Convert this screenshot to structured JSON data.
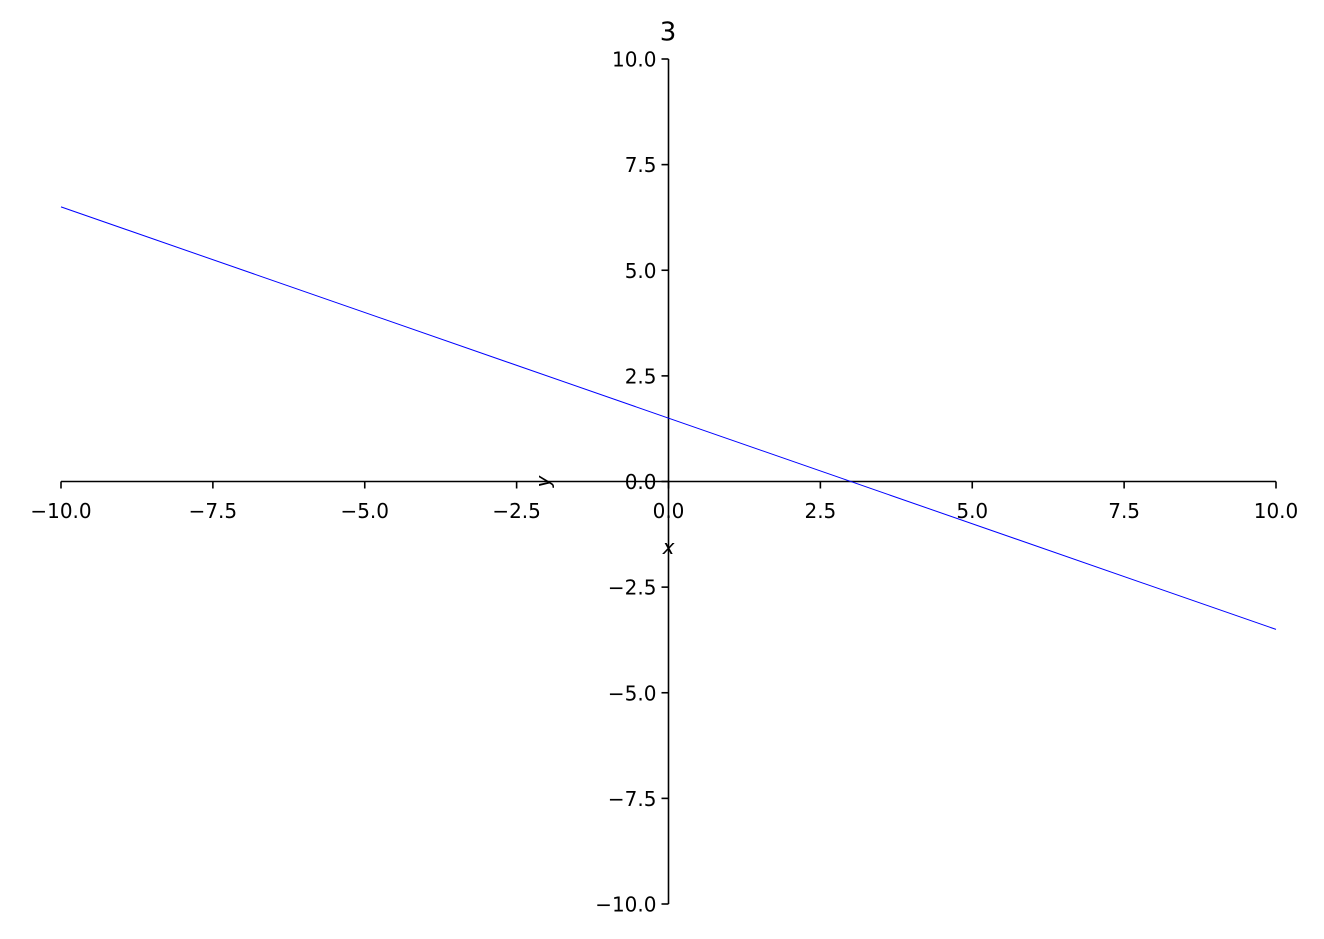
{
  "chart_data": {
    "type": "line",
    "title": "3",
    "x_label": "x",
    "y_label": "y",
    "x": [
      -10,
      10
    ],
    "values": [
      6.5,
      -3.5
    ],
    "color": "#0000ff",
    "xlim": [
      -10,
      10
    ],
    "ylim": [
      -10,
      10
    ],
    "xticks": [
      {
        "value": -10,
        "label": "−10.0"
      },
      {
        "value": -7.5,
        "label": "−7.5"
      },
      {
        "value": -5,
        "label": "−5.0"
      },
      {
        "value": -2.5,
        "label": "−2.5"
      },
      {
        "value": 0,
        "label": "0.0"
      },
      {
        "value": 2.5,
        "label": "2.5"
      },
      {
        "value": 5,
        "label": "5.0"
      },
      {
        "value": 7.5,
        "label": "7.5"
      },
      {
        "value": 10,
        "label": "10.0"
      }
    ],
    "yticks": [
      {
        "value": -10,
        "label": "−10.0"
      },
      {
        "value": -7.5,
        "label": "−7.5"
      },
      {
        "value": -5,
        "label": "−5.0"
      },
      {
        "value": -2.5,
        "label": "−2.5"
      },
      {
        "value": 0,
        "label": "0.0"
      },
      {
        "value": 2.5,
        "label": "2.5"
      },
      {
        "value": 5,
        "label": "5.0"
      },
      {
        "value": 7.5,
        "label": "7.5"
      },
      {
        "value": 10,
        "label": "10.0"
      }
    ]
  }
}
